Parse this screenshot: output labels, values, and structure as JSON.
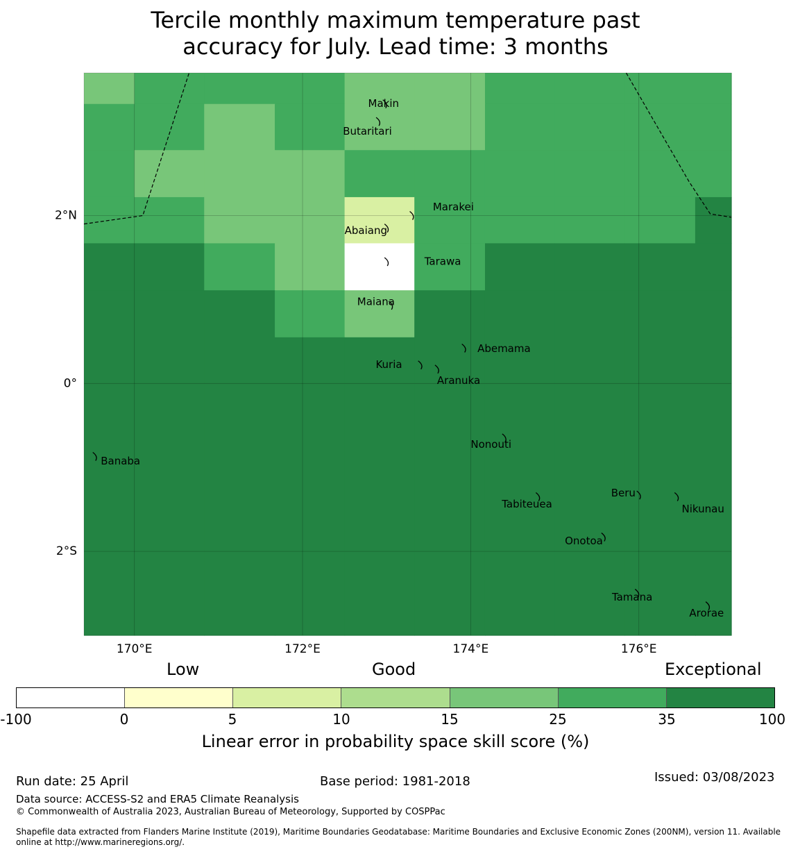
{
  "title": {
    "line1": "Tercile monthly maximum temperature past",
    "line2": "accuracy for July. Lead time: 3 months"
  },
  "map": {
    "lon_range": [
      169.4,
      177.1
    ],
    "lat_range": [
      -3.0,
      3.7
    ],
    "lat_ticks": [
      {
        "value": 2,
        "label": "2°N"
      },
      {
        "value": 0,
        "label": "0°"
      },
      {
        "value": -2,
        "label": "2°S"
      }
    ],
    "lon_ticks": [
      {
        "value": 170,
        "label": "170°E"
      },
      {
        "value": 172,
        "label": "172°E"
      },
      {
        "value": 174,
        "label": "174°E"
      },
      {
        "value": 176,
        "label": "176°E"
      }
    ],
    "grid_on": true,
    "skill_grid": {
      "lon_edges": [
        169.4,
        170.0,
        170.83,
        171.67,
        172.5,
        173.33,
        174.17,
        175.0,
        175.83,
        176.67,
        177.1
      ],
      "lat_edges": [
        3.7,
        3.33,
        2.78,
        2.22,
        1.67,
        1.11,
        0.55,
        -3.0
      ],
      "class_colors": [
        "#ffffff",
        "#ffffcc",
        "#d9f0a3",
        "#addd8e",
        "#78c679",
        "#41ab5d",
        "#238443"
      ],
      "classes": [
        [
          4,
          5,
          5,
          5,
          4,
          4,
          5,
          5,
          5,
          5
        ],
        [
          5,
          5,
          4,
          5,
          4,
          4,
          5,
          5,
          5,
          5
        ],
        [
          5,
          4,
          4,
          4,
          5,
          5,
          5,
          5,
          5,
          5
        ],
        [
          5,
          5,
          4,
          4,
          2,
          5,
          5,
          5,
          5,
          6
        ],
        [
          6,
          6,
          5,
          4,
          0,
          5,
          6,
          6,
          6,
          6
        ],
        [
          6,
          6,
          6,
          5,
          4,
          6,
          6,
          6,
          6,
          6
        ],
        [
          6,
          6,
          6,
          6,
          6,
          6,
          6,
          6,
          6,
          6
        ]
      ]
    },
    "boundaries": [
      [
        [
          169.4,
          1.9
        ],
        [
          170.1,
          2.0
        ],
        [
          170.65,
          3.7
        ]
      ],
      [
        [
          175.85,
          3.7
        ],
        [
          176.6,
          2.4
        ],
        [
          176.85,
          2.02
        ],
        [
          177.1,
          1.98
        ]
      ]
    ],
    "islands": [
      {
        "name": "Makin",
        "lon": 172.98,
        "lat": 3.33,
        "label_lon": 172.78,
        "label_lat": 3.33
      },
      {
        "name": "Butaritari",
        "lon": 172.9,
        "lat": 3.12,
        "label_lon": 172.48,
        "label_lat": 3.0
      },
      {
        "name": "Marakei",
        "lon": 173.3,
        "lat": 2.0,
        "label_lon": 173.55,
        "label_lat": 2.1
      },
      {
        "name": "Abaiang",
        "lon": 173.0,
        "lat": 1.85,
        "label_lon": 172.5,
        "label_lat": 1.82
      },
      {
        "name": "Tarawa",
        "lon": 173.0,
        "lat": 1.45,
        "label_lon": 173.45,
        "label_lat": 1.45
      },
      {
        "name": "Maiana",
        "lon": 173.05,
        "lat": 0.93,
        "label_lon": 172.65,
        "label_lat": 0.97
      },
      {
        "name": "Abemama",
        "lon": 173.92,
        "lat": 0.42,
        "label_lon": 174.08,
        "label_lat": 0.41
      },
      {
        "name": "Kuria",
        "lon": 173.4,
        "lat": 0.22,
        "label_lon": 172.87,
        "label_lat": 0.22
      },
      {
        "name": "Aranuka",
        "lon": 173.6,
        "lat": 0.17,
        "label_lon": 173.6,
        "label_lat": 0.03
      },
      {
        "name": "Nonouti",
        "lon": 174.4,
        "lat": -0.65,
        "label_lon": 174.0,
        "label_lat": -0.73
      },
      {
        "name": "Banaba",
        "lon": 169.53,
        "lat": -0.87,
        "label_lon": 169.6,
        "label_lat": -0.93
      },
      {
        "name": "Tabiteuea",
        "lon": 174.8,
        "lat": -1.35,
        "label_lon": 174.37,
        "label_lat": -1.44
      },
      {
        "name": "Beru",
        "lon": 176.0,
        "lat": -1.33,
        "label_lon": 175.67,
        "label_lat": -1.31
      },
      {
        "name": "Nikunau",
        "lon": 176.45,
        "lat": -1.35,
        "label_lon": 176.51,
        "label_lat": -1.5
      },
      {
        "name": "Onotoa",
        "lon": 175.58,
        "lat": -1.83,
        "label_lon": 175.12,
        "label_lat": -1.88
      },
      {
        "name": "Tamana",
        "lon": 175.98,
        "lat": -2.5,
        "label_lon": 175.68,
        "label_lat": -2.55
      },
      {
        "name": "Arorae",
        "lon": 176.82,
        "lat": -2.65,
        "label_lon": 176.6,
        "label_lat": -2.74
      }
    ]
  },
  "colorbar": {
    "category_labels": [
      "Low",
      "Good",
      "Exceptional"
    ],
    "ticks": [
      "-100",
      "0",
      "5",
      "10",
      "15",
      "25",
      "35",
      "100"
    ],
    "colors": [
      "#ffffff",
      "#ffffcc",
      "#d9f0a3",
      "#addd8e",
      "#78c679",
      "#41ab5d",
      "#238443"
    ],
    "label": "Linear error in probability space skill score (%)"
  },
  "footer": {
    "run_date": "Run date: 25 April",
    "base_period": "Base period: 1981-2018",
    "issued": "Issued: 03/08/2023",
    "data_source": "Data source: ACCESS-S2 and ERA5 Climate Reanalysis",
    "copyright": "© Commonwealth of Australia 2023, Australian Bureau of Meteorology, Supported by COSPPac",
    "shapefile_line1": "Shapefile data extracted from Flanders Marine Institute (2019), Maritime Boundaries Geodatabase: Maritime Boundaries and Exclusive Economic Zones (200NM), version 11. Available",
    "shapefile_line2": "online at http://www.marineregions.org/."
  }
}
